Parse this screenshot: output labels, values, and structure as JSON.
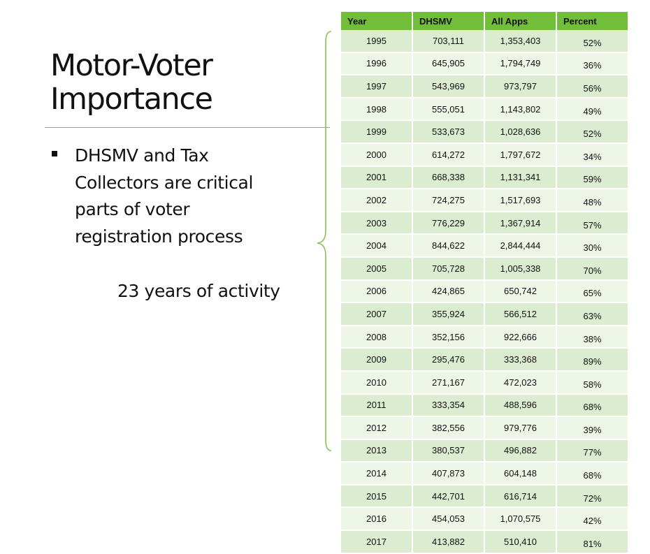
{
  "slide": {
    "title_line1": "Motor-Voter",
    "title_line2": "Importance",
    "bullet": "DHSMV and Tax Collectors are critical parts of voter registration process",
    "subtext": "23 years of activity"
  },
  "table": {
    "headers": [
      "Year",
      "DHSMV",
      "All Apps",
      "Percent"
    ],
    "rows": [
      [
        "1995",
        "703,111",
        "1,353,403",
        "52%"
      ],
      [
        "1996",
        "645,905",
        "1,794,749",
        "36%"
      ],
      [
        "1997",
        "543,969",
        "973,797",
        "56%"
      ],
      [
        "1998",
        "555,051",
        "1,143,802",
        "49%"
      ],
      [
        "1999",
        "533,673",
        "1,028,636",
        "52%"
      ],
      [
        "2000",
        "614,272",
        "1,797,672",
        "34%"
      ],
      [
        "2001",
        "668,338",
        "1,131,341",
        "59%"
      ],
      [
        "2002",
        "724,275",
        "1,517,693",
        "48%"
      ],
      [
        "2003",
        "776,229",
        "1,367,914",
        "57%"
      ],
      [
        "2004",
        "844,622",
        "2,844,444",
        "30%"
      ],
      [
        "2005",
        "705,728",
        "1,005,338",
        "70%"
      ],
      [
        "2006",
        "424,865",
        "650,742",
        "65%"
      ],
      [
        "2007",
        "355,924",
        "566,512",
        "63%"
      ],
      [
        "2008",
        "352,156",
        "922,666",
        "38%"
      ],
      [
        "2009",
        "295,476",
        "333,368",
        "89%"
      ],
      [
        "2010",
        "271,167",
        "472,023",
        "58%"
      ],
      [
        "2011",
        "333,354",
        "488,596",
        "68%"
      ],
      [
        "2012",
        "382,556",
        "979,776",
        "39%"
      ],
      [
        "2013",
        "380,537",
        "496,882",
        "77%"
      ],
      [
        "2014",
        "407,873",
        "604,148",
        "68%"
      ],
      [
        "2015",
        "442,701",
        "616,714",
        "72%"
      ],
      [
        "2016",
        "454,053",
        "1,070,575",
        "42%"
      ],
      [
        "2017",
        "413,882",
        "510,410",
        "81%"
      ]
    ]
  },
  "colors": {
    "header_green": "#72bd3a",
    "row_band_dark": "#dcecd0",
    "row_band_light": "#eef6e8",
    "brace_green": "#8cc152"
  }
}
